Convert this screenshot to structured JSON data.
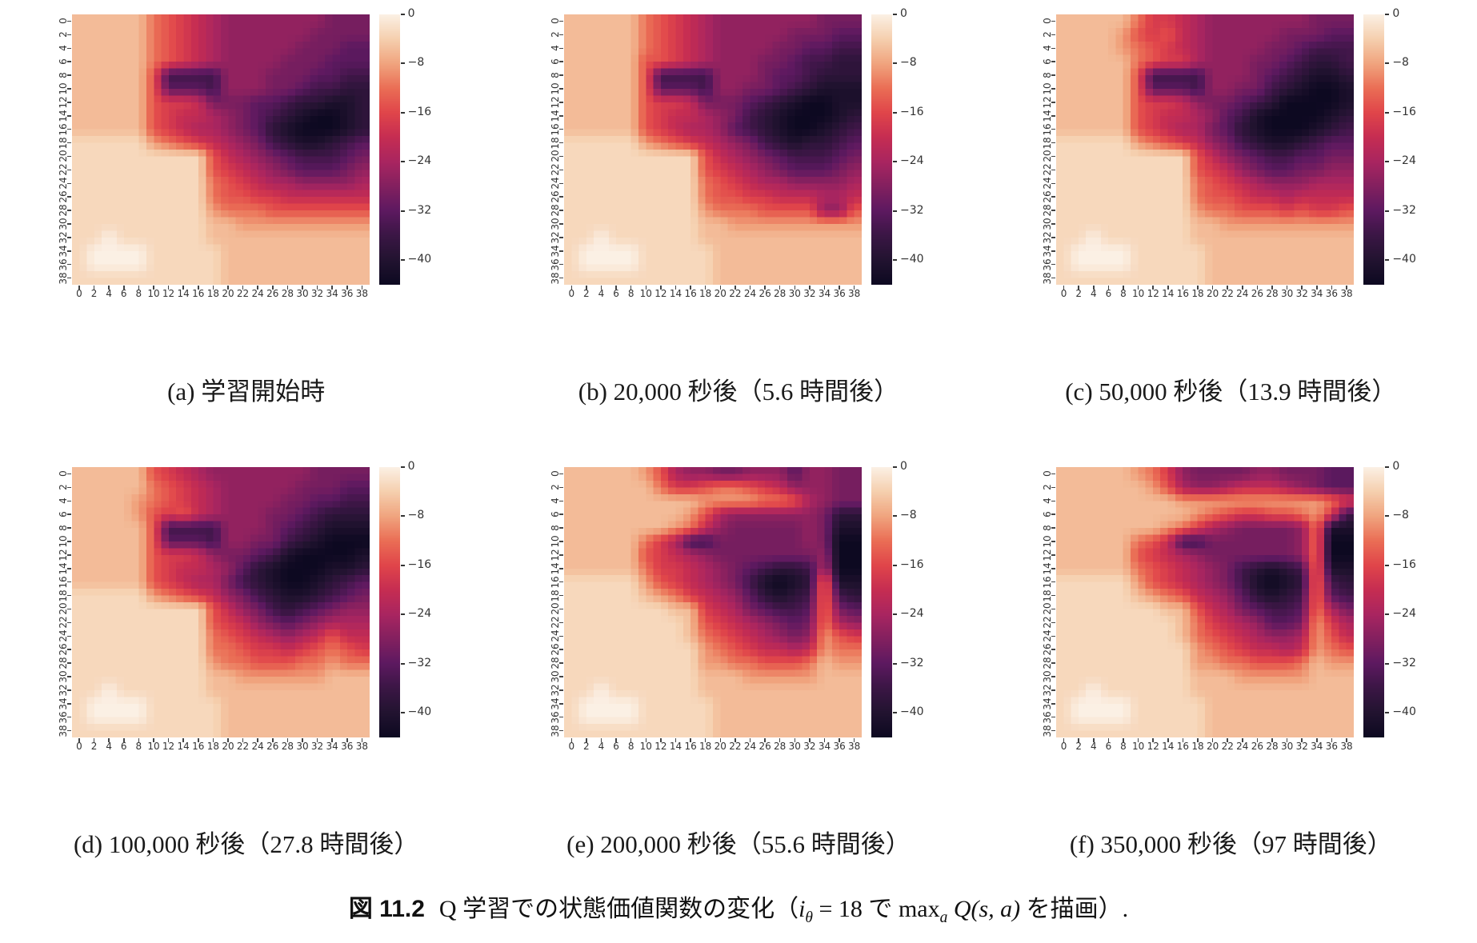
{
  "figure": {
    "background": "#ffffff",
    "caption": {
      "label": "図 11.2",
      "body": "Q 学習での状態価値関数の変化",
      "paren_open": "（",
      "math_i": "i",
      "math_theta": "θ",
      "math_eq": " = 18 で ",
      "math_max": "max",
      "math_sub_a": "a",
      "math_rest": " Q(s, a) ",
      "tail": "を描画）."
    }
  },
  "chart_data": {
    "type": "heatmap",
    "layout": {
      "rows": 2,
      "cols": 3
    },
    "x_ticks": [
      0,
      2,
      4,
      6,
      8,
      10,
      12,
      14,
      16,
      18,
      20,
      22,
      24,
      26,
      28,
      30,
      32,
      34,
      36,
      38
    ],
    "y_ticks": [
      0,
      2,
      4,
      6,
      8,
      10,
      12,
      14,
      16,
      18,
      20,
      22,
      24,
      26,
      28,
      30,
      32,
      34,
      36,
      38
    ],
    "colorbar": {
      "tick_labels": [
        "0",
        "−8",
        "−16",
        "−24",
        "−32",
        "−40"
      ],
      "tick_values": [
        0,
        -8,
        -16,
        -24,
        -32,
        -40
      ],
      "vmin": -44,
      "vmax": 0
    },
    "colormap": {
      "name": "rocket-like",
      "stops": [
        {
          "v": 0,
          "c": "#fbf0e4"
        },
        {
          "v": -4,
          "c": "#f5cfae"
        },
        {
          "v": -8,
          "c": "#f0a47e"
        },
        {
          "v": -12,
          "c": "#ea6e55"
        },
        {
          "v": -16,
          "c": "#e0454a"
        },
        {
          "v": -20,
          "c": "#c62d52"
        },
        {
          "v": -24,
          "c": "#a92560"
        },
        {
          "v": -28,
          "c": "#83205f"
        },
        {
          "v": -32,
          "c": "#5d1960"
        },
        {
          "v": -36,
          "c": "#3b1645"
        },
        {
          "v": -40,
          "c": "#221330"
        },
        {
          "v": -44,
          "c": "#0d0921"
        }
      ]
    },
    "grid_encoding": {
      "chars": "0123456789abcdef",
      "note": "each char is a hex level i; cell value = -(i*44/15); grids are 20x20 downsamples of the 40x40 state map, row 0 = y 0 (top)"
    },
    "panels": [
      {
        "id": "a",
        "caption": "(a) 学習開始時",
        "grid": [
          "22222456789999999aaa",
          "2222245678999999aaaa",
          "222224567899999aaabb",
          "22222456789999aaabbb",
          "222225cccc999aaabbcc",
          "222225bbbc999aabccdd",
          "222225667aaabbcddeed",
          "22222567789abcdeffed",
          "22222567889abdefffed",
          "111113456789acdeedcb",
          "1111111115789abcccba",
          "11111111156789abbba9",
          "11111111145678899998",
          "11111111145566777777",
          "11111111134445555555",
          "11111111122333333333",
          "11011111122222222222",
          "10000111112222222222",
          "10000111112222222222",
          "11111111112222222222"
        ]
      },
      {
        "id": "b",
        "caption": "(b) 20,000 秒後（5.6 時間後）",
        "grid": [
          "22222456789999999aaa",
          "222224567899999aaabb",
          "22222456789999aabbcc",
          "2222255678999aabccdd",
          "222225cccc999abbcddd",
          "222225bbbc99aabcdeee",
          "222225667aaabcdeffee",
          "22222567789acdefffed",
          "22222567889bcdeffedc",
          "111113456789acdeddcb",
          "1111111115789abcccba",
          "11111111156789abbba9",
          "11111111145678899998",
          "11111111145566777887",
          "11111111134445555995",
          "11111111122333333333",
          "11011111122222222222",
          "10000111112222222222",
          "10000111112222222222",
          "11111111112222222222"
        ]
      },
      {
        "id": "c",
        "caption": "(c) 50,000 秒後（13.9 時間後）",
        "grid": [
          "22222466789999999aaa",
          "222235657899999aaabb",
          "22223456789999aabccc",
          "2222245668999aabcddc",
          "222225cccc999abcdeed",
          "222225bbbc99aacdeffe",
          "2222256679aabcdffffe",
          "22222567789bceffffed",
          "2222256788abdefffedc",
          "11111345679acdeedcbb",
          "111111111579abccbbaa",
          "1111111115679abbaa99",
          "11111111145678999888",
          "11111111145567787777",
          "11111111134455565665",
          "11111111122333333333",
          "11011111122222222222",
          "10000111112222222222",
          "10000111112222222222",
          "11111111112222222222"
        ]
      },
      {
        "id": "d",
        "caption": "(d) 100,000 秒後（27.8 時間後）",
        "grid": [
          "2222256789999999aaaa",
          "222224567899999aaabb",
          "22223456789999aabbcc",
          "2222356578999aabcddd",
          "222225cccc999abcdeee",
          "222225bbbc99aacdefff",
          "2222256679aabceffffe",
          "22222567789bdefffeed",
          "2222256788acdeffedcb",
          "11111345679acdeedcba",
          "111111111579acdcba99",
          "1111111115679aba9888",
          "11111111145678987577",
          "11111111144566765456",
          "11111111134455544344",
          "11111111122333333222",
          "11011111122222222222",
          "10000111112222222222",
          "10000111112222222222",
          "11111111112222222222"
        ]
      },
      {
        "id": "e",
        "caption": "(e) 200,000 秒後（55.6 時間後）",
        "grid": [
          "2222235899aa999b99aa",
          "222222466544567999aa",
          "222222222333344589aa",
          "22222222358999999add",
          "22222223479aaaaa9aee",
          "22222468ccaaaaaa9aff",
          "2222256789aaaaaaa9ff",
          "22222466789abcddc8ff",
          "11111356789acefed4ee",
          "111112346789bdedc4cd",
          "111111122678abccb4ab",
          "11111111256789aba489",
          "111111112456789a9356",
          "11111111134567787344",
          "11111111133445554233",
          "11111111122233333222",
          "11011111122222222222",
          "10000111112222222222",
          "10000111112222222222",
          "11111111112222222222"
        ]
      },
      {
        "id": "f",
        "caption": "(f) 350,000 秒後（97 時間後）",
        "grid": [
          "222223469aaaa99aaabb",
          "22222235899877789abb",
          "22222222333333333346",
          "2222222223456655436c",
          "222222234689aaaa94ee",
          "22222457ccaaaaaa94ff",
          "2222256789aaaaaa94ff",
          "22222456789acdedc4ee",
          "11111356789acefed4cd",
          "111112345789bdedc4bc",
          "111111122578abccb48a",
          "11111111246789bba368",
          "11111111245678998357",
          "11111111134567787345",
          "11111111133445554233",
          "11111111122233333222",
          "11011111122222222222",
          "10000111112222222222",
          "10000111112222222222",
          "11111111112222222222"
        ]
      }
    ]
  }
}
